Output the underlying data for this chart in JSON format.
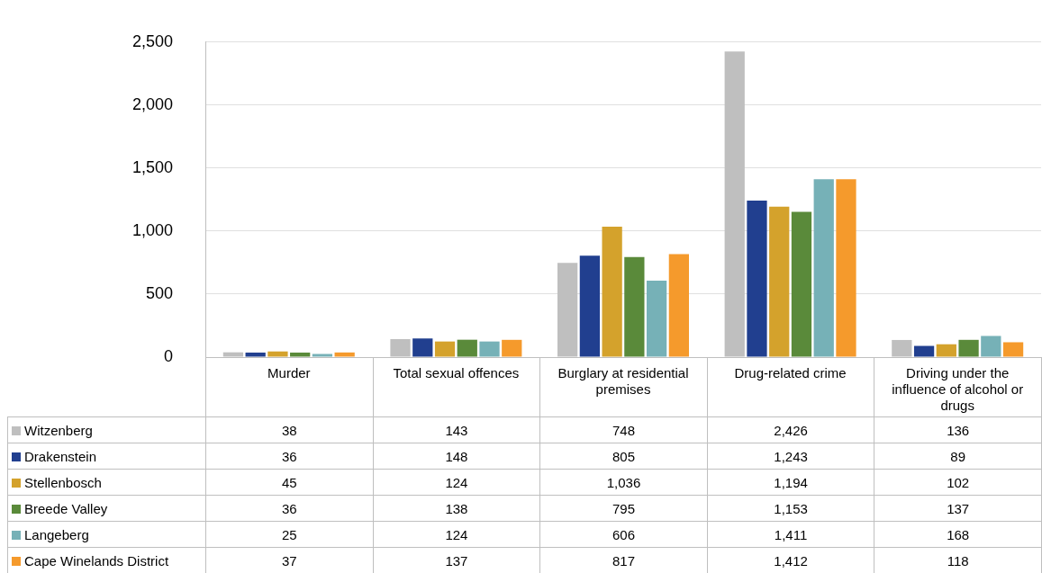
{
  "chart_data": {
    "type": "bar",
    "categories": [
      "Murder",
      "Total sexual offences",
      "Burglary at residential premises",
      "Drug-related crime",
      "Driving under the influence of alcohol or drugs"
    ],
    "series": [
      {
        "name": "Witzenberg",
        "color": "#bfbfbf",
        "values": [
          38,
          143,
          748,
          2426,
          136
        ],
        "value_labels": [
          "38",
          "143",
          "748",
          "2,426",
          "136"
        ]
      },
      {
        "name": "Drakenstein",
        "color": "#213f8f",
        "values": [
          36,
          148,
          805,
          1243,
          89
        ],
        "value_labels": [
          "36",
          "148",
          "805",
          "1,243",
          "89"
        ]
      },
      {
        "name": "Stellenbosch",
        "color": "#d4a22c",
        "values": [
          45,
          124,
          1036,
          1194,
          102
        ],
        "value_labels": [
          "45",
          "124",
          "1,036",
          "1,194",
          "102"
        ]
      },
      {
        "name": "Breede Valley",
        "color": "#5a8a3a",
        "values": [
          36,
          138,
          795,
          1153,
          137
        ],
        "value_labels": [
          "36",
          "138",
          "795",
          "1,153",
          "137"
        ]
      },
      {
        "name": "Langeberg",
        "color": "#76b1b7",
        "values": [
          25,
          124,
          606,
          1411,
          168
        ],
        "value_labels": [
          "25",
          "124",
          "606",
          "1,411",
          "168"
        ]
      },
      {
        "name": "Cape Winelands District",
        "color": "#f59a2c",
        "values": [
          37,
          137,
          817,
          1412,
          118
        ],
        "value_labels": [
          "37",
          "137",
          "817",
          "1,412",
          "118"
        ]
      }
    ],
    "ylim": [
      0,
      2500
    ],
    "yticks": [
      {
        "value": 0,
        "label": "0"
      },
      {
        "value": 500,
        "label": "500"
      },
      {
        "value": 1000,
        "label": "1,000"
      },
      {
        "value": 1500,
        "label": "1,500"
      },
      {
        "value": 2000,
        "label": "2,000"
      },
      {
        "value": 2500,
        "label": "2,500"
      }
    ],
    "grid": "y",
    "legend": "bottom left"
  }
}
